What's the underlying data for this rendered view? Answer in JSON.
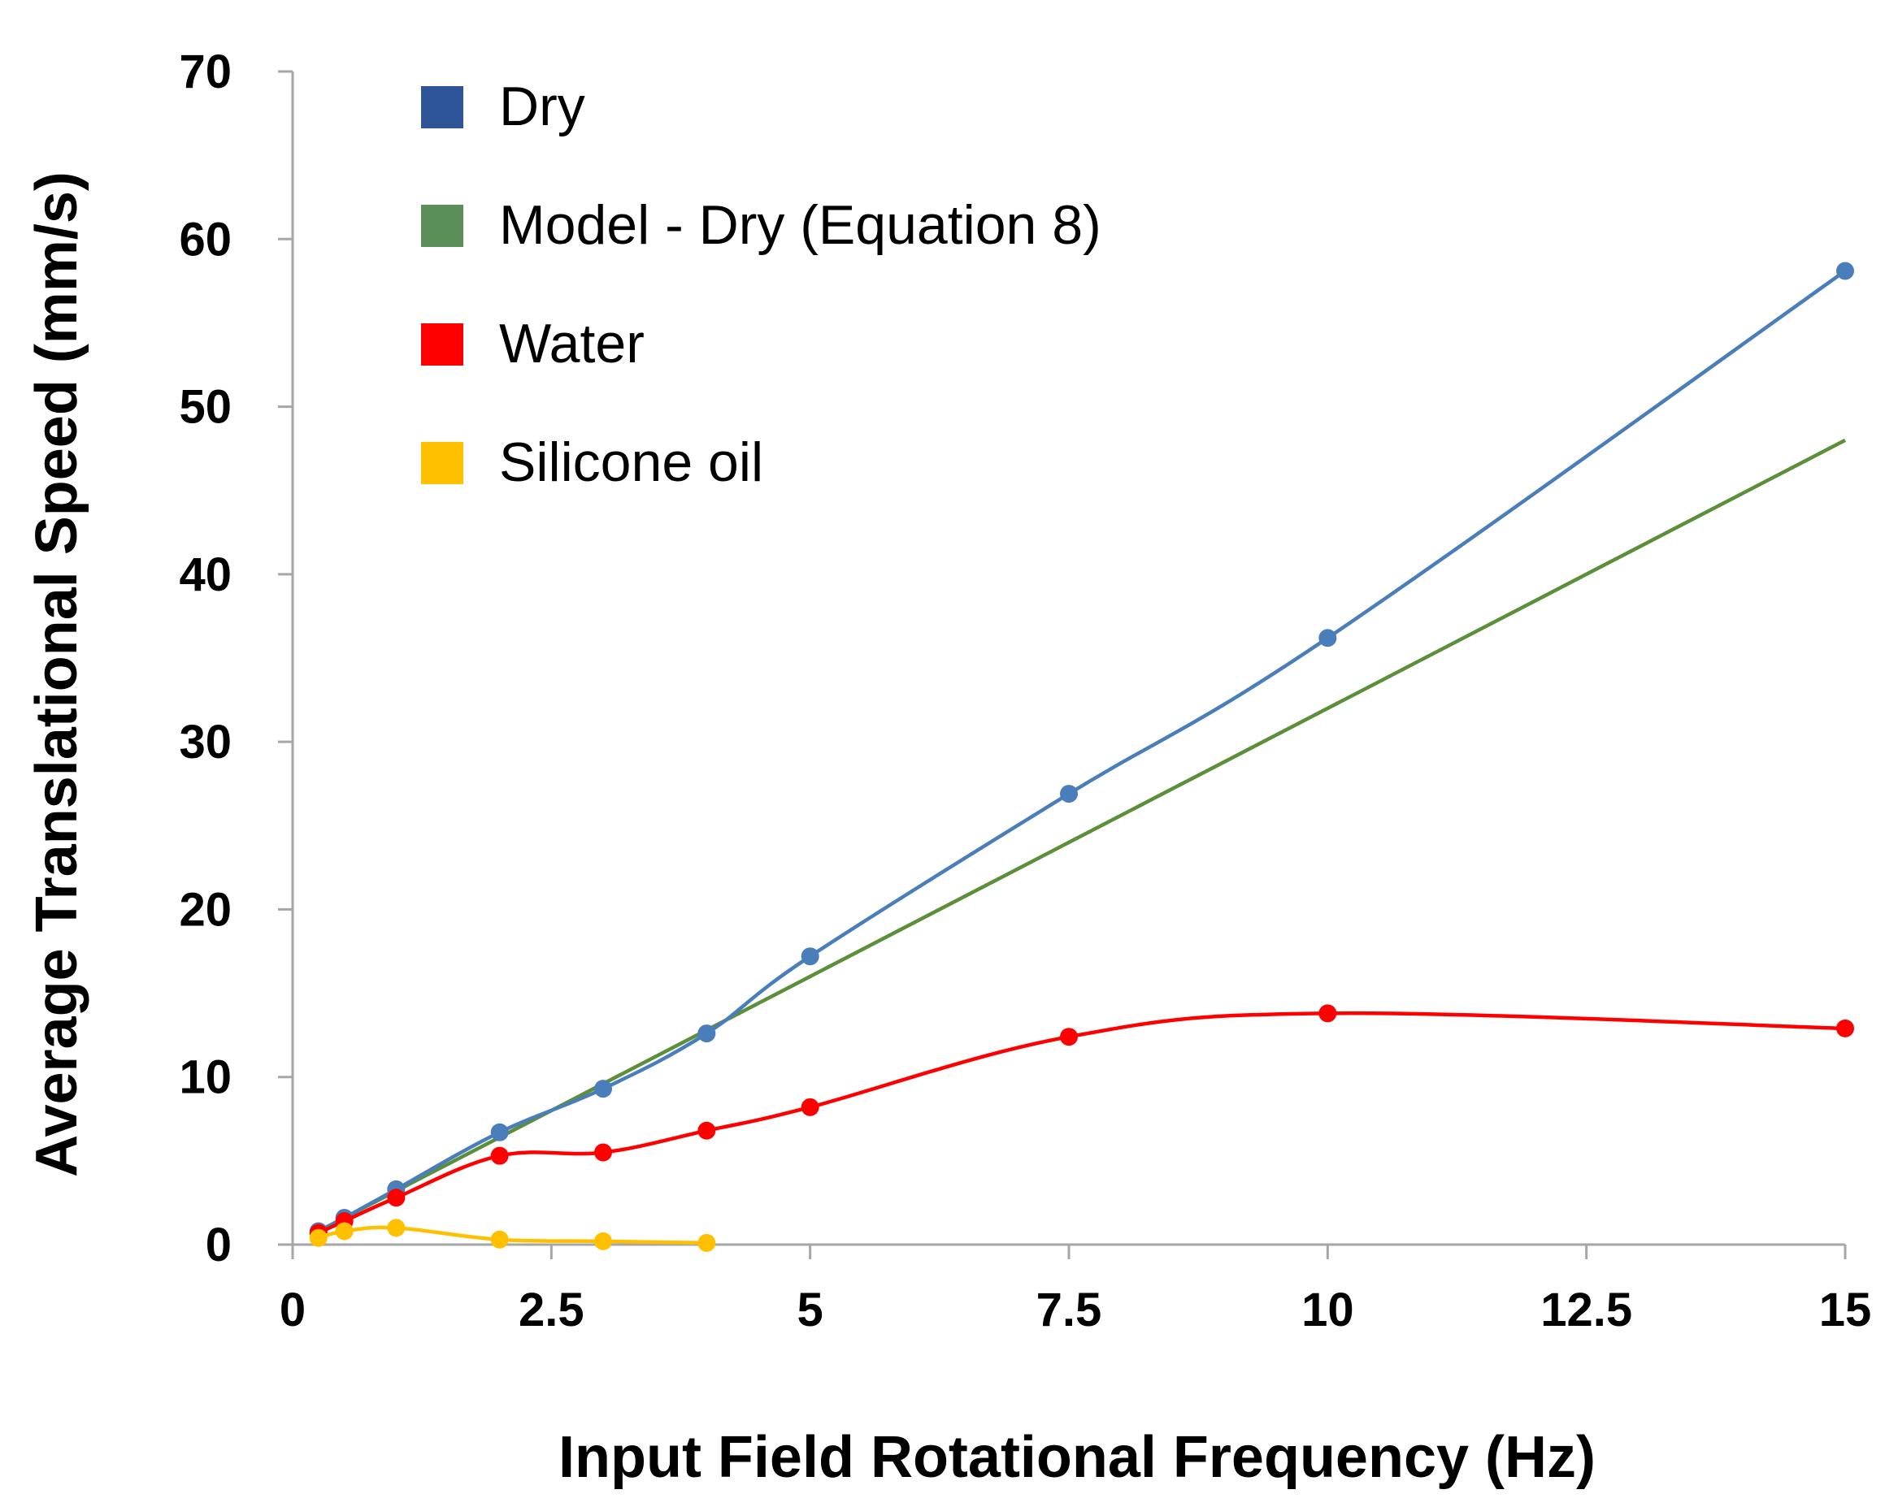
{
  "chart_data": {
    "type": "line",
    "xlabel": "Input Field Rotational Frequency (Hz)",
    "ylabel": "Average Translational Speed (mm/s)",
    "xlim": [
      0,
      15
    ],
    "ylim": [
      0,
      70
    ],
    "x_ticks": [
      "0",
      "2.5",
      "5",
      "7.5",
      "10",
      "12.5",
      "15"
    ],
    "y_ticks": [
      "0",
      "10",
      "20",
      "30",
      "40",
      "50",
      "60",
      "70"
    ],
    "grid": false,
    "legend_position": "top-left",
    "series": [
      {
        "name": "Dry",
        "color": "#4a7ebb",
        "legend_color": "#2e5597",
        "markers": true,
        "x": [
          0.25,
          0.5,
          1,
          2,
          3,
          4,
          5,
          7.5,
          10,
          15
        ],
        "y": [
          0.8,
          1.6,
          3.3,
          6.7,
          9.3,
          12.6,
          17.2,
          26.9,
          36.2,
          58.1
        ]
      },
      {
        "name": "Model - Dry (Equation 8)",
        "color": "#5b8f3a",
        "legend_color": "#5b8f5a",
        "markers": false,
        "x": [
          0.25,
          0.5,
          1,
          2,
          3,
          4,
          5,
          7.5,
          10,
          15
        ],
        "y": [
          0.8,
          1.6,
          3.2,
          6.4,
          9.6,
          12.8,
          16.0,
          24.0,
          32.0,
          48.0
        ]
      },
      {
        "name": "Water",
        "color": "#ff0000",
        "legend_color": "#ff0000",
        "markers": true,
        "x": [
          0.25,
          0.5,
          1,
          2,
          3,
          4,
          5,
          7.5,
          10,
          15
        ],
        "y": [
          0.7,
          1.4,
          2.8,
          5.3,
          5.5,
          6.8,
          8.2,
          12.4,
          13.8,
          12.9
        ]
      },
      {
        "name": "Silicone oil",
        "color": "#ffc000",
        "legend_color": "#ffc000",
        "markers": true,
        "x": [
          0.25,
          0.5,
          1,
          2,
          3,
          4
        ],
        "y": [
          0.4,
          0.8,
          1.0,
          0.3,
          0.2,
          0.1
        ]
      }
    ]
  }
}
